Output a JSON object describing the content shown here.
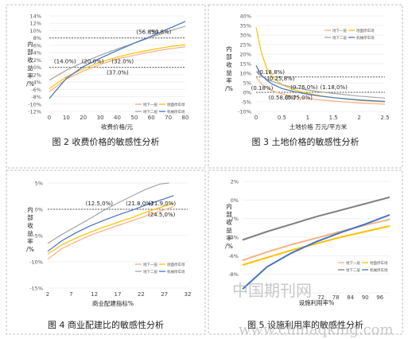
{
  "page_title": "",
  "chart_data": [
    {
      "type": "line",
      "id": "fig2",
      "caption": "图 2 收费价格的敏感性分析",
      "xlabel": "收费价格/元",
      "ylabel_chars": [
        "内",
        "部",
        "收",
        "益",
        "率",
        "/%"
      ],
      "xlim": [
        0,
        80
      ],
      "ylim": [
        -12,
        14
      ],
      "xticks": [
        0,
        10,
        20,
        30,
        40,
        50,
        60,
        70,
        80
      ],
      "xtick_labels": [
        "0",
        "10",
        "20",
        "30",
        "40",
        "50",
        "60",
        "70",
        "80"
      ],
      "yticks": [
        -12,
        -10,
        -8,
        -6,
        -4,
        -2,
        0,
        2,
        4,
        6,
        8,
        10,
        12,
        14
      ],
      "ytick_labels": [
        "-12%",
        "-10%",
        "-8%",
        "-6%",
        "-4%",
        "-2%",
        "0%",
        "2%",
        "4%",
        "6%",
        "8%",
        "10%",
        "12%",
        "14%"
      ],
      "hlines": [
        0,
        8
      ],
      "series": [
        {
          "color": "#f4b183",
          "x": [
            0,
            10,
            20,
            30,
            40,
            50,
            60,
            70,
            80
          ],
          "y": [
            -6.6,
            -3.2,
            -1.0,
            0.8,
            2.3,
            3.3,
            4.2,
            5.0,
            5.6
          ]
        },
        {
          "color": "#ffc000",
          "x": [
            0,
            10,
            20,
            30,
            40,
            50,
            60,
            70,
            80
          ],
          "y": [
            -5.8,
            -2.6,
            -0.4,
            1.4,
            2.8,
            3.9,
            4.8,
            5.6,
            6.2
          ]
        },
        {
          "color": "#a5a5a5",
          "x": [
            0,
            10,
            20,
            30,
            40,
            50,
            60,
            70,
            80
          ],
          "y": [
            -3.5,
            -0.8,
            1.4,
            3.3,
            5.0,
            6.6,
            8.2,
            9.8,
            11.2
          ]
        },
        {
          "color": "#4472c4",
          "x": [
            0,
            10,
            20,
            30,
            40,
            50,
            60,
            70,
            80
          ],
          "y": [
            -8.5,
            -3.0,
            0.2,
            2.5,
            4.6,
            6.6,
            8.5,
            10.5,
            12.5
          ]
        }
      ],
      "legend": [
        "地下一层",
        "地面停车场",
        "地下二层",
        "机械停车场"
      ],
      "annotations": [
        {
          "text": "(14.0%)",
          "x": 14,
          "y": 0
        },
        {
          "text": "(20.0%)",
          "x": 20,
          "y": 0
        },
        {
          "text": "(32.0%)",
          "x": 32,
          "y": 0
        },
        {
          "text": "(37.0%)",
          "x": 37,
          "y": 0
        },
        {
          "text": "(56.8%)",
          "x": 56.8,
          "y": 8
        },
        {
          "text": "(59.8%)",
          "x": 59.8,
          "y": 8
        }
      ]
    },
    {
      "type": "line",
      "id": "fig3",
      "caption": "图 3 土地价格的敏感性分析",
      "xlabel": "土地价格 万元/平方米",
      "ylabel_chars": [
        "内",
        "部",
        "收",
        "益",
        "率",
        "/%"
      ],
      "xlim": [
        0,
        2.5
      ],
      "ylim": [
        -10,
        40
      ],
      "xticks": [
        0,
        0.5,
        1,
        1.5,
        2,
        2.5
      ],
      "xtick_labels": [
        "0",
        "0.5",
        "1",
        "1.5",
        "2",
        "2.5"
      ],
      "yticks": [
        -10,
        -5,
        0,
        5,
        10,
        15,
        20,
        25,
        30,
        35,
        40
      ],
      "ytick_labels": [
        "-10%",
        "-5%",
        "0%",
        "5%",
        "10%",
        "15%",
        "20%",
        "25%",
        "30%",
        "35%",
        "40%"
      ],
      "hlines": [
        0,
        8
      ],
      "series": [
        {
          "color": "#f4b183",
          "x": [
            0,
            0.1,
            0.2,
            0.3,
            0.5,
            0.75,
            1,
            1.25,
            1.5,
            2,
            2.5
          ],
          "y": [
            8,
            4.5,
            2.5,
            1,
            -0.8,
            -2.3,
            -3.3,
            -4,
            -4.6,
            -5.6,
            -6.2
          ]
        },
        {
          "color": "#ffc000",
          "x": [
            0,
            0.1,
            0.2,
            0.3,
            0.5,
            0.75,
            1,
            1.25,
            1.5,
            2,
            2.5
          ],
          "y": [
            34,
            21,
            13,
            8.5,
            4,
            1.2,
            -0.6,
            -1.8,
            -2.8,
            -4.2,
            -5
          ]
        },
        {
          "color": "#a5a5a5",
          "x": [
            0,
            0.1,
            0.2,
            0.3,
            0.5,
            0.75,
            1,
            1.25,
            1.5,
            2,
            2.5
          ],
          "y": [
            11,
            8.5,
            7,
            5.8,
            4,
            2.5,
            1.2,
            0.2,
            -0.6,
            -2,
            -3
          ]
        },
        {
          "color": "#4472c4",
          "x": [
            0,
            0.1,
            0.2,
            0.3,
            0.5,
            0.75,
            1,
            1.25,
            1.5,
            2,
            2.5
          ],
          "y": [
            14,
            9,
            6.5,
            4.5,
            2,
            0.3,
            -1,
            -2,
            -2.8,
            -4,
            -4.8
          ]
        }
      ],
      "legend": [
        "地下一层",
        "地面停车场",
        "地下二层",
        "机械停车场"
      ],
      "annotations": [
        {
          "text": "(0.18,8%)",
          "x": 0.18,
          "y": 8
        },
        {
          "text": "(0.25,8%)",
          "x": 0.25,
          "y": 8
        },
        {
          "text": "(0.18%)",
          "x": 0.18,
          "y": 0
        },
        {
          "text": "(0.58,0%)",
          "x": 0.58,
          "y": 0
        },
        {
          "text": "(0.75,0%)",
          "x": 0.75,
          "y": 0
        },
        {
          "text": "(0.76,0%)",
          "x": 0.76,
          "y": 0
        },
        {
          "text": "(1.18,0%)",
          "x": 1.18,
          "y": 0
        }
      ]
    },
    {
      "type": "line",
      "id": "fig4",
      "caption": "图 4 商业配建比的敏感性分析",
      "xlabel": "商业配建指标%",
      "ylabel_chars": [
        "内",
        "部",
        "收",
        "益",
        "率",
        "/%"
      ],
      "xlim": [
        2,
        32
      ],
      "ylim": [
        -15,
        5
      ],
      "xticks": [
        2,
        7,
        12,
        17,
        22,
        27,
        32
      ],
      "xtick_labels": [
        "2",
        "7",
        "12",
        "17",
        "22",
        "27",
        "32"
      ],
      "yticks": [
        -15,
        -10,
        -5,
        0,
        5
      ],
      "ytick_labels": [
        "-15%",
        "-10%",
        "-5%",
        "0%",
        "5%"
      ],
      "hlines": [
        0
      ],
      "series": [
        {
          "color": "#f4b183",
          "x": [
            2,
            5,
            8,
            11,
            14,
            17,
            20,
            23,
            26,
            29
          ],
          "y": [
            -9.5,
            -7.5,
            -6.2,
            -5,
            -4,
            -3.1,
            -2.2,
            -1.3,
            -0.4,
            0.5
          ]
        },
        {
          "color": "#ffc000",
          "x": [
            2,
            5,
            8,
            11,
            14,
            17,
            20,
            23,
            26,
            29
          ],
          "y": [
            -8.5,
            -6.8,
            -5.5,
            -4.4,
            -3.4,
            -2.5,
            -1.6,
            -0.6,
            0.3,
            1.2
          ]
        },
        {
          "color": "#a5a5a5",
          "x": [
            2,
            5,
            8,
            11,
            14,
            17,
            20,
            23,
            26,
            28
          ],
          "y": [
            -6.5,
            -4.8,
            -3.3,
            -1.8,
            -0.2,
            1.2,
            2.5,
            3.8,
            4.8,
            5.0
          ]
        },
        {
          "color": "#4472c4",
          "x": [
            2,
            5,
            8,
            11,
            14,
            17,
            20,
            23,
            26,
            29
          ],
          "y": [
            -8.0,
            -6.0,
            -4.5,
            -3.2,
            -2.1,
            -1.1,
            -0.2,
            0.8,
            1.7,
            2.6
          ]
        }
      ],
      "legend": [
        "地下一层",
        "地面停车场",
        "地下二层",
        "机械停车场"
      ],
      "annotations": [
        {
          "text": "(12.5,0%)",
          "x": 12.5,
          "y": 0
        },
        {
          "text": "(21.8,0%)",
          "x": 21.8,
          "y": 0
        },
        {
          "text": "(21.9,0%)",
          "x": 21.9,
          "y": 0
        },
        {
          "text": "(24.5,0%)",
          "x": 24.5,
          "y": 0
        }
      ]
    },
    {
      "type": "line",
      "id": "fig5",
      "caption": "图 5 设施利用率的敏感性分析",
      "xlabel": "设施利用率%",
      "ylabel_chars": [
        "内",
        "部",
        "收",
        "益",
        "率",
        "/%"
      ],
      "xlim": [
        40,
        100
      ],
      "ylim": [
        -10,
        2
      ],
      "xticks": [
        72,
        78,
        84,
        90,
        96
      ],
      "xtick_labels": [
        "72",
        "78",
        "84",
        "90",
        "96"
      ],
      "yticks": [
        -10,
        -8,
        -6,
        -4,
        -2,
        0,
        2
      ],
      "ytick_labels": [
        "",
        "-8%",
        "-6%",
        "-4%",
        "-2%",
        "0%",
        "2%"
      ],
      "hlines": [],
      "series": [
        {
          "color": "#f4b183",
          "x": [
            40,
            50,
            60,
            70,
            80,
            90,
            100
          ],
          "y": [
            -6.5,
            -5.6,
            -4.8,
            -4.1,
            -3.4,
            -2.7,
            -2.1
          ]
        },
        {
          "color": "#ffc000",
          "x": [
            40,
            50,
            60,
            70,
            80,
            90,
            100
          ],
          "y": [
            -7.0,
            -6.2,
            -5.4,
            -4.7,
            -4.0,
            -3.4,
            -2.8
          ]
        },
        {
          "color": "#7f7f7f",
          "x": [
            40,
            50,
            60,
            70,
            80,
            90,
            100
          ],
          "y": [
            -4.3,
            -3.4,
            -2.6,
            -1.8,
            -1.1,
            -0.4,
            0.3
          ]
        },
        {
          "color": "#4472c4",
          "x": [
            40,
            50,
            60,
            70,
            80,
            90,
            100
          ],
          "y": [
            -9.6,
            -7.2,
            -5.7,
            -4.5,
            -3.5,
            -2.6,
            -1.6
          ]
        }
      ],
      "legend": [
        "地下一层",
        "地面停车场",
        "地下二层",
        "机械停车场"
      ],
      "annotations": []
    }
  ],
  "watermark": {
    "cn": "中国期刊网",
    "en": "www.chinaqking.com"
  }
}
